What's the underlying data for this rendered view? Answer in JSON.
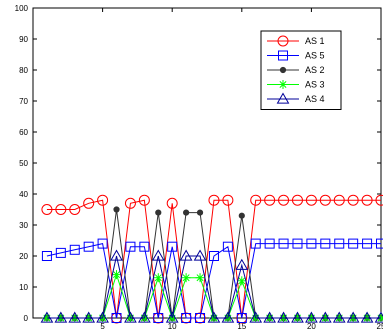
{
  "chart_data": {
    "type": "line",
    "xlim": [
      0,
      25
    ],
    "ylim": [
      0,
      100
    ],
    "x_ticks": [
      5,
      10,
      15,
      20,
      25
    ],
    "y_ticks": [
      0,
      10,
      20,
      30,
      40,
      50,
      60,
      70,
      80,
      90,
      100
    ],
    "grid": false,
    "legend_position": "top-right",
    "x": [
      1,
      2,
      3,
      4,
      5,
      6,
      7,
      8,
      9,
      10,
      11,
      12,
      13,
      14,
      15,
      16,
      17,
      18,
      19,
      20,
      21,
      22,
      23,
      24,
      25
    ],
    "series": [
      {
        "name": "AS 1",
        "color": "#ff0000",
        "marker": "circle",
        "values": [
          35,
          35,
          35,
          37,
          38,
          0,
          37,
          38,
          0,
          37,
          0,
          0,
          38,
          38,
          0,
          38,
          38,
          38,
          38,
          38,
          38,
          38,
          38,
          38,
          38
        ]
      },
      {
        "name": "AS 5",
        "color": "#0000ff",
        "marker": "square",
        "values": [
          20,
          21,
          22,
          23,
          24,
          0,
          23,
          23,
          0,
          23,
          0,
          0,
          20,
          23,
          0,
          24,
          24,
          24,
          24,
          24,
          24,
          24,
          24,
          24,
          24
        ]
      },
      {
        "name": "AS 2",
        "color": "#333333",
        "marker": "dot",
        "values": [
          0,
          0,
          0,
          0,
          0,
          35,
          0,
          0,
          34,
          0,
          34,
          34,
          0,
          0,
          33,
          0,
          0,
          0,
          0,
          0,
          0,
          0,
          0,
          0,
          0
        ]
      },
      {
        "name": "AS 3",
        "color": "#00ff00",
        "marker": "star",
        "values": [
          0,
          0,
          0,
          0,
          0,
          14,
          0,
          0,
          13,
          0,
          13,
          13,
          0,
          0,
          12,
          0,
          0,
          0,
          0,
          0,
          0,
          0,
          0,
          0,
          0
        ]
      },
      {
        "name": "AS 4",
        "color": "#000099",
        "marker": "triangle",
        "values": [
          0,
          0,
          0,
          0,
          0,
          20,
          0,
          0,
          20,
          0,
          20,
          20,
          0,
          0,
          17,
          0,
          0,
          0,
          0,
          0,
          0,
          0,
          0,
          0,
          0
        ]
      }
    ]
  }
}
